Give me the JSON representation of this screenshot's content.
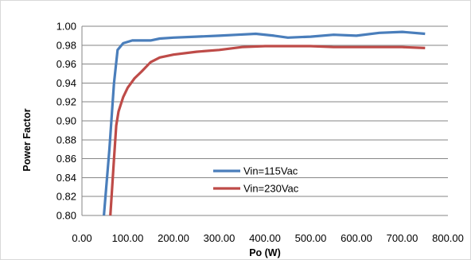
{
  "chart_data": {
    "type": "line",
    "title": "",
    "xlabel": "Po (W)",
    "ylabel": "Power Factor",
    "xlim": [
      0,
      800
    ],
    "ylim": [
      0.8,
      1.0
    ],
    "x_ticks": [
      "0.00",
      "100.00",
      "200.00",
      "300.00",
      "400.00",
      "500.00",
      "600.00",
      "700.00",
      "800.00"
    ],
    "y_ticks": [
      "0.80",
      "0.82",
      "0.84",
      "0.86",
      "0.88",
      "0.90",
      "0.92",
      "0.94",
      "0.96",
      "0.98",
      "1.00"
    ],
    "grid": "horizontal",
    "legend_position": "inside-lower-center",
    "series": [
      {
        "name": "Vin=115Vac",
        "color": "#4a7ebb",
        "x": [
          48,
          60,
          70,
          78,
          90,
          110,
          130,
          150,
          170,
          200,
          250,
          300,
          340,
          380,
          420,
          450,
          500,
          550,
          600,
          650,
          700,
          750
        ],
        "y": [
          0.8,
          0.87,
          0.94,
          0.975,
          0.982,
          0.985,
          0.985,
          0.985,
          0.987,
          0.988,
          0.989,
          0.99,
          0.991,
          0.992,
          0.99,
          0.988,
          0.989,
          0.991,
          0.99,
          0.993,
          0.994,
          0.992
        ]
      },
      {
        "name": "Vin=230Vac",
        "color": "#be4b48",
        "x": [
          62,
          70,
          75,
          80,
          90,
          100,
          115,
          130,
          150,
          170,
          200,
          250,
          300,
          350,
          400,
          450,
          500,
          550,
          600,
          650,
          700,
          750
        ],
        "y": [
          0.8,
          0.86,
          0.895,
          0.91,
          0.925,
          0.935,
          0.945,
          0.952,
          0.962,
          0.967,
          0.97,
          0.973,
          0.975,
          0.978,
          0.979,
          0.979,
          0.979,
          0.978,
          0.978,
          0.978,
          0.978,
          0.977
        ]
      }
    ]
  }
}
